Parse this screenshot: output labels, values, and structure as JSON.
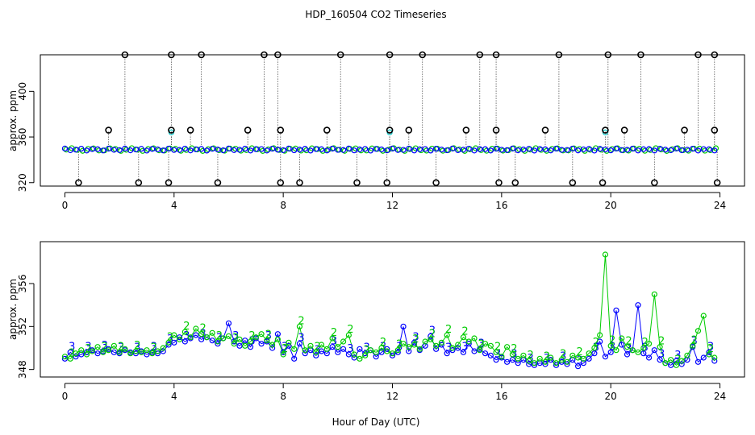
{
  "title": "HDP_160504  CO2 Timeseries",
  "xlabel": "Hour of Day (UTC)",
  "colors": {
    "series3": "#0000ff",
    "series2": "#00cc00",
    "qc_flag": "#000000",
    "cyan": "#00c8c8"
  },
  "chart_data": [
    {
      "type": "scatter",
      "id": "top",
      "ylabel": "approx. ppm",
      "xlim": [
        -0.9,
        24.9
      ],
      "ylim": [
        317,
        432
      ],
      "xticks": [
        0,
        4,
        8,
        12,
        16,
        20,
        24
      ],
      "yticks": [
        320,
        360,
        400
      ],
      "baseline": 349,
      "outliers_high": [
        2.2,
        3.9,
        5.0,
        7.3,
        7.8,
        10.1,
        11.9,
        13.1,
        15.2,
        15.8,
        18.1,
        19.9,
        21.1,
        23.2,
        23.8
      ],
      "outliers_mid": [
        1.6,
        3.9,
        4.6,
        6.7,
        7.9,
        9.6,
        11.9,
        12.6,
        14.7,
        15.8,
        17.6,
        19.8,
        20.5,
        22.7,
        23.8
      ],
      "outliers_low": [
        0.5,
        2.7,
        3.8,
        5.6,
        7.9,
        8.6,
        10.7,
        11.8,
        13.6,
        15.9,
        16.5,
        18.6,
        19.7,
        21.6,
        23.9
      ],
      "high_value": 432,
      "mid_value": 366,
      "low_value": 320
    },
    {
      "type": "line",
      "id": "bottom",
      "ylabel": "approx. ppm",
      "xlim": [
        -0.9,
        24.9
      ],
      "ylim": [
        347.3,
        359.9
      ],
      "xticks": [
        0,
        4,
        8,
        12,
        16,
        20,
        24
      ],
      "yticks": [
        348,
        352,
        356
      ],
      "series": [
        {
          "name": "3",
          "x": [
            0.0,
            0.2,
            0.4,
            0.6,
            0.8,
            1.0,
            1.2,
            1.4,
            1.6,
            1.8,
            2.0,
            2.2,
            2.4,
            2.6,
            2.8,
            3.0,
            3.2,
            3.4,
            3.6,
            3.8,
            4.0,
            4.2,
            4.4,
            4.6,
            4.8,
            5.0,
            5.2,
            5.4,
            5.6,
            5.8,
            6.0,
            6.2,
            6.4,
            6.6,
            6.8,
            7.0,
            7.2,
            7.4,
            7.6,
            7.8,
            8.0,
            8.2,
            8.4,
            8.6,
            8.8,
            9.0,
            9.2,
            9.4,
            9.6,
            9.8,
            10.0,
            10.2,
            10.4,
            10.6,
            10.8,
            11.0,
            11.2,
            11.4,
            11.6,
            11.8,
            12.0,
            12.2,
            12.4,
            12.6,
            12.8,
            13.0,
            13.2,
            13.4,
            13.6,
            13.8,
            14.0,
            14.2,
            14.4,
            14.6,
            14.8,
            15.0,
            15.2,
            15.4,
            15.6,
            15.8,
            16.0,
            16.2,
            16.4,
            16.6,
            16.8,
            17.0,
            17.2,
            17.4,
            17.6,
            17.8,
            18.0,
            18.2,
            18.4,
            18.6,
            18.8,
            19.0,
            19.2,
            19.4,
            19.6,
            19.8,
            20.0,
            20.2,
            20.4,
            20.6,
            20.8,
            21.0,
            21.2,
            21.4,
            21.6,
            21.8,
            22.0,
            22.2,
            22.4,
            22.6,
            22.8,
            23.0,
            23.2,
            23.4,
            23.6,
            23.8
          ],
          "values": [
            349.0,
            349.6,
            349.2,
            349.4,
            349.6,
            349.8,
            349.5,
            349.7,
            349.9,
            349.6,
            349.5,
            349.8,
            349.6,
            349.5,
            349.7,
            349.4,
            349.6,
            349.5,
            349.7,
            350.3,
            350.5,
            351.0,
            350.6,
            350.9,
            351.2,
            350.8,
            351.0,
            350.7,
            350.4,
            350.9,
            352.3,
            350.6,
            350.2,
            350.7,
            350.1,
            350.9,
            350.4,
            350.6,
            350.0,
            351.3,
            349.6,
            350.2,
            349.0,
            350.4,
            349.5,
            349.8,
            349.3,
            349.7,
            349.5,
            350.1,
            349.6,
            349.9,
            349.4,
            349.1,
            349.9,
            349.5,
            349.8,
            349.2,
            349.6,
            349.9,
            349.3,
            349.6,
            352.0,
            349.7,
            350.5,
            349.8,
            350.2,
            351.1,
            349.9,
            350.3,
            349.5,
            349.8,
            350.0,
            349.6,
            350.4,
            349.7,
            349.9,
            349.5,
            349.3,
            348.9,
            349.1,
            348.7,
            348.9,
            348.6,
            348.9,
            348.5,
            348.4,
            348.6,
            348.5,
            348.9,
            348.4,
            348.7,
            348.5,
            348.9,
            348.3,
            348.6,
            349.0,
            349.5,
            350.6,
            349.2,
            349.6,
            353.5,
            350.3,
            349.4,
            349.8,
            354.0,
            349.5,
            349.1,
            349.8,
            348.9,
            348.6,
            348.4,
            348.8,
            348.5,
            348.9,
            350.1,
            348.7,
            349.1,
            349.6,
            348.8
          ]
        },
        {
          "name": "2",
          "x": [
            0.0,
            0.2,
            0.4,
            0.6,
            0.8,
            1.0,
            1.2,
            1.4,
            1.6,
            1.8,
            2.0,
            2.2,
            2.4,
            2.6,
            2.8,
            3.0,
            3.2,
            3.4,
            3.6,
            3.8,
            4.0,
            4.2,
            4.4,
            4.6,
            4.8,
            5.0,
            5.2,
            5.4,
            5.6,
            5.8,
            6.0,
            6.2,
            6.4,
            6.6,
            6.8,
            7.0,
            7.2,
            7.4,
            7.6,
            7.8,
            8.0,
            8.2,
            8.4,
            8.6,
            8.8,
            9.0,
            9.2,
            9.4,
            9.6,
            9.8,
            10.0,
            10.2,
            10.4,
            10.6,
            10.8,
            11.0,
            11.2,
            11.4,
            11.6,
            11.8,
            12.0,
            12.2,
            12.4,
            12.6,
            12.8,
            13.0,
            13.2,
            13.4,
            13.6,
            13.8,
            14.0,
            14.2,
            14.4,
            14.6,
            14.8,
            15.0,
            15.2,
            15.4,
            15.6,
            15.8,
            16.0,
            16.2,
            16.4,
            16.6,
            16.8,
            17.0,
            17.2,
            17.4,
            17.6,
            17.8,
            18.0,
            18.2,
            18.4,
            18.6,
            18.8,
            19.0,
            19.2,
            19.4,
            19.6,
            19.8,
            20.0,
            20.2,
            20.4,
            20.6,
            20.8,
            21.0,
            21.2,
            21.4,
            21.6,
            21.8,
            22.0,
            22.2,
            22.4,
            22.6,
            22.8,
            23.0,
            23.2,
            23.4,
            23.6,
            23.8
          ],
          "values": [
            349.2,
            349.0,
            349.5,
            349.8,
            349.4,
            349.7,
            350.1,
            349.6,
            349.8,
            350.2,
            349.6,
            349.9,
            349.5,
            349.7,
            349.6,
            349.8,
            349.5,
            349.7,
            350.0,
            350.5,
            351.2,
            350.8,
            351.5,
            351.0,
            351.8,
            351.3,
            351.0,
            351.4,
            350.6,
            350.9,
            351.1,
            350.4,
            350.8,
            350.2,
            350.6,
            351.0,
            351.3,
            350.7,
            350.3,
            350.8,
            349.4,
            350.5,
            349.9,
            352.0,
            349.8,
            350.2,
            349.6,
            350.3,
            349.9,
            350.9,
            350.1,
            350.6,
            351.2,
            349.4,
            349.0,
            349.3,
            349.8,
            349.6,
            350.0,
            349.7,
            349.5,
            349.8,
            350.4,
            350.1,
            350.3,
            349.9,
            350.6,
            350.8,
            350.2,
            350.5,
            351.2,
            350.0,
            350.3,
            351.0,
            350.6,
            350.9,
            349.8,
            350.4,
            350.2,
            349.6,
            349.2,
            350.1,
            349.4,
            349.0,
            349.3,
            348.8,
            348.6,
            349.0,
            348.7,
            349.1,
            348.6,
            348.9,
            348.7,
            349.3,
            349.1,
            349.0,
            349.5,
            350.0,
            351.2,
            358.7,
            350.2,
            349.8,
            350.9,
            350.1,
            349.8,
            349.6,
            350.0,
            350.4,
            355.0,
            350.1,
            348.6,
            348.9,
            348.4,
            348.8,
            349.3,
            350.2,
            351.6,
            353.0,
            349.4,
            349.1
          ]
        }
      ]
    }
  ]
}
